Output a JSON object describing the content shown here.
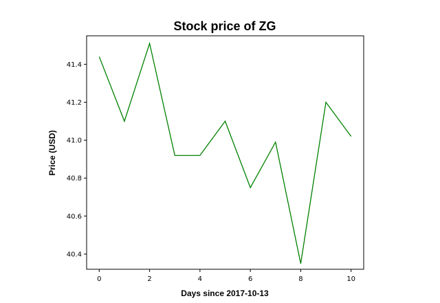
{
  "chart_data": {
    "type": "line",
    "title": "Stock price of ZG",
    "xlabel": "Days since 2017-10-13",
    "ylabel": "Price (USD)",
    "x": [
      0,
      1,
      2,
      3,
      4,
      5,
      6,
      7,
      8,
      9,
      10
    ],
    "series": [
      {
        "values": [
          41.44,
          41.1,
          41.51,
          40.92,
          40.92,
          41.1,
          40.75,
          40.99,
          40.35,
          41.2,
          41.02
        ],
        "color": "#008000"
      }
    ],
    "xlim": [
      -0.5,
      10.5
    ],
    "ylim": [
      40.32,
      41.55
    ],
    "xticks": [
      0,
      2,
      4,
      6,
      8,
      10
    ],
    "yticks": [
      40.4,
      40.6,
      40.8,
      41.0,
      41.2,
      41.4
    ],
    "ytick_labels": [
      "40.4",
      "40.6",
      "40.8",
      "41.0",
      "41.2",
      "41.4"
    ],
    "grid": false,
    "legend": "none"
  }
}
